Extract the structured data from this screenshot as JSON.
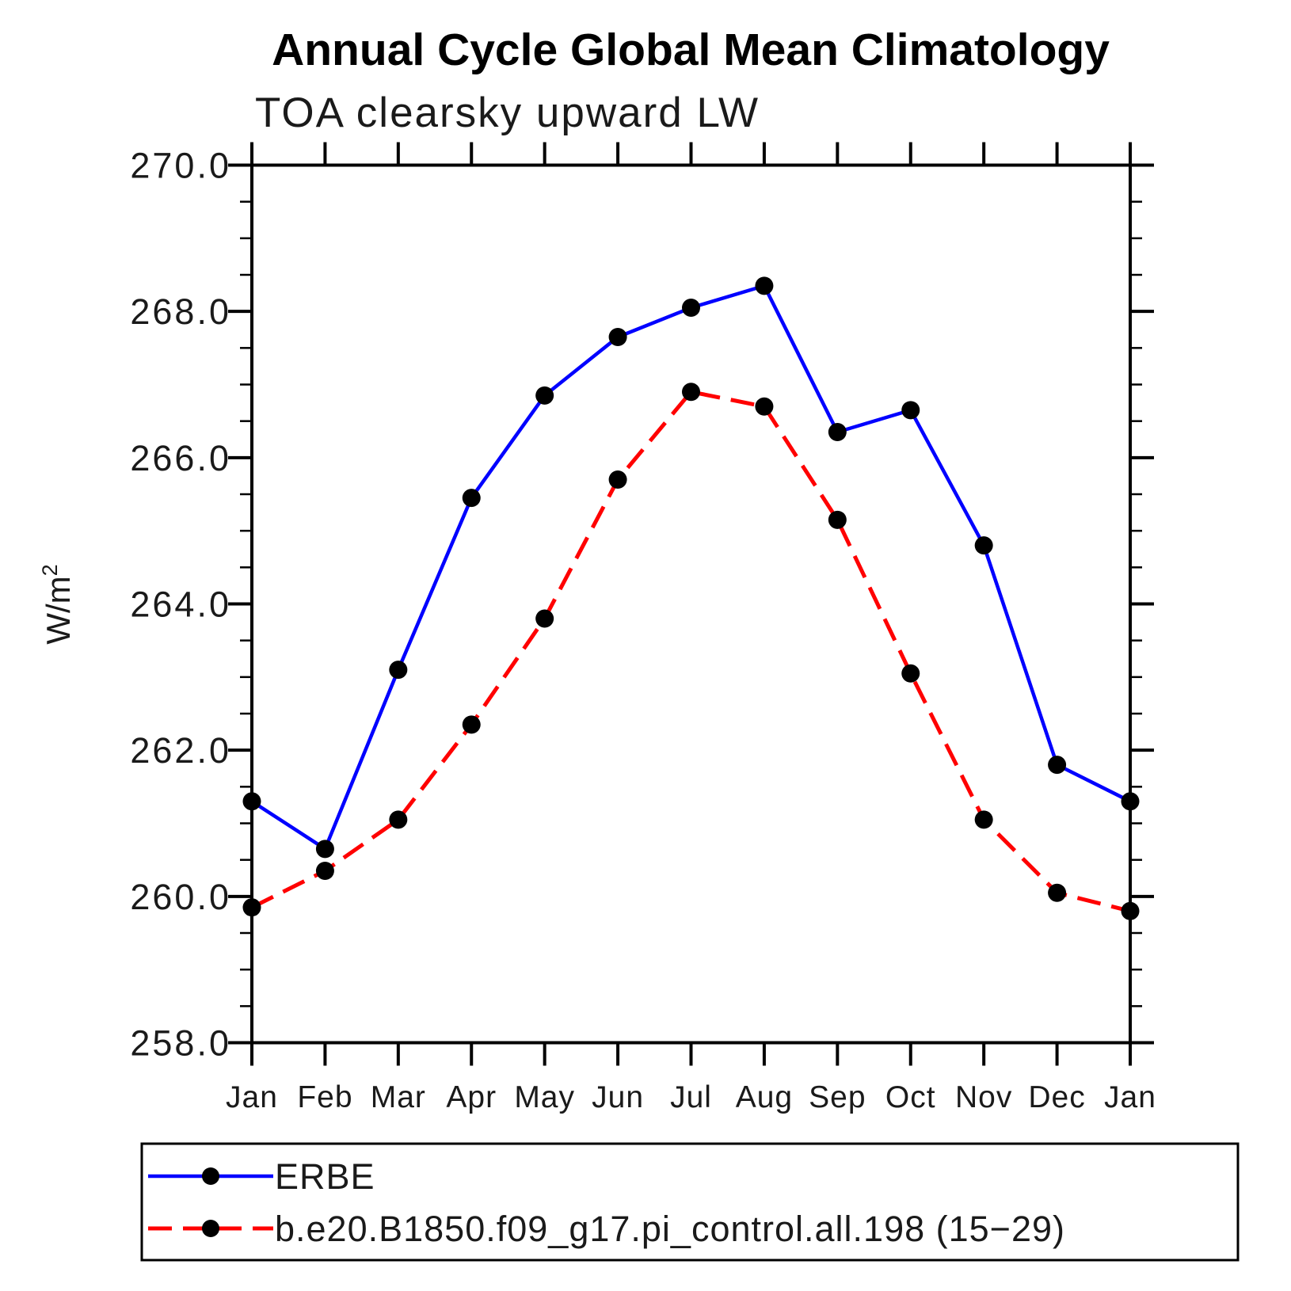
{
  "title": "Annual Cycle Global Mean Climatology",
  "subtitle": "TOA clearsky upward LW",
  "y_axis": {
    "label_base": "W/m",
    "label_sup": "2",
    "unit": "W/m²"
  },
  "chart_data": {
    "type": "line",
    "title": "Annual Cycle Global Mean Climatology",
    "subtitle": "TOA clearsky upward LW",
    "xlabel": "",
    "ylabel": "W/m²",
    "categories": [
      "Jan",
      "Feb",
      "Mar",
      "Apr",
      "May",
      "Jun",
      "Jul",
      "Aug",
      "Sep",
      "Oct",
      "Nov",
      "Dec",
      "Jan"
    ],
    "ylim": [
      258.0,
      270.0
    ],
    "ytick_major_interval": 2.0,
    "ytick_minor_interval": 0.5,
    "ytick_labels": [
      "258.0",
      "260.0",
      "262.0",
      "264.0",
      "266.0",
      "268.0",
      "270.0"
    ],
    "grid": false,
    "legend_position": "bottom-left-box",
    "axis_color": "#000000",
    "marker": "filled-circle",
    "marker_color": "#000000",
    "series": [
      {
        "name": "ERBE",
        "color": "#0000ff",
        "line_style": "solid",
        "values": [
          261.3,
          260.65,
          263.1,
          265.45,
          266.85,
          267.65,
          268.05,
          268.35,
          266.35,
          266.65,
          264.8,
          261.8,
          261.3
        ]
      },
      {
        "name": "b.e20.B1850.f09_g17.pi_control.all.198 (15−29)",
        "color": "#ff0000",
        "line_style": "dashed",
        "values": [
          259.85,
          260.35,
          261.05,
          262.35,
          263.8,
          265.7,
          266.9,
          266.7,
          265.15,
          263.05,
          261.05,
          260.05,
          259.8
        ]
      }
    ]
  }
}
